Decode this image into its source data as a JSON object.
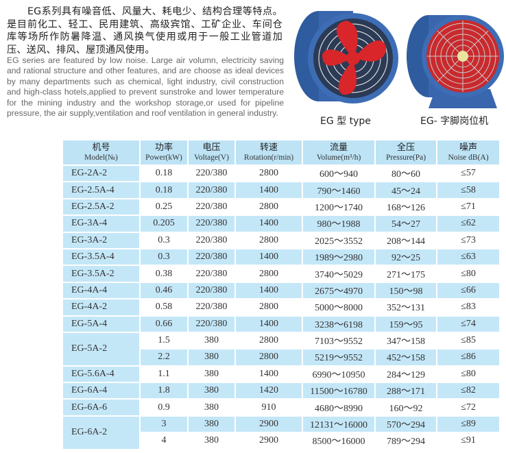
{
  "intro": {
    "cn": "EG系列具有噪音低、风量大、耗电少、结构合理等特点。是目前化工、轻工、民用建筑、高级宾馆、工矿企业、车间仓库等场所作防暑降温、通风换气使用或用于一般工业管道加压、送风、排风、屋顶通风使用。",
    "en": "EG series are featured by low noise. Large air volumn, electricity saving and rational structure and other features, and are choose as ideal devices by many departments such as chemical, light industry, civil construction and high-class hotels,applied to prevent sunstroke and lower temperature for the mining industry and the workshop storage,or used for pipeline pressure, the air supply,ventilation and roof ventilation in general industry."
  },
  "products": [
    {
      "caption": "EG 型 type"
    },
    {
      "caption": "EG- 字脚岗位机"
    }
  ],
  "colors": {
    "header_bg": "#bde3f5",
    "alt_row_bg": "#c4e7f8",
    "fan_blade": "#d8262a",
    "fan_body": "#3d6db5"
  },
  "table": {
    "headers": [
      {
        "cn": "机号",
        "en": "Model(№)"
      },
      {
        "cn": "功率",
        "en": "Power(kW)"
      },
      {
        "cn": "电压",
        "en": "Voltage(V)"
      },
      {
        "cn": "转速",
        "en": "Rotation(r/min)"
      },
      {
        "cn": "流量",
        "en": "Volume(m³/h)"
      },
      {
        "cn": "全压",
        "en": "Pressure(Pa)"
      },
      {
        "cn": "噪声",
        "en": "Noise dB(A)"
      }
    ],
    "rows": [
      {
        "model": "EG-2A-2",
        "power": "0.18",
        "voltage": "220/380",
        "rotation": "2800",
        "volume": "600～940",
        "pressure": "80～60",
        "noise": "≤57"
      },
      {
        "model": "EG-2.5A-4",
        "power": "0.18",
        "voltage": "220/380",
        "rotation": "1400",
        "volume": "790～1460",
        "pressure": "45～24",
        "noise": "≤58"
      },
      {
        "model": "EG-2.5A-2",
        "power": "0.25",
        "voltage": "220/380",
        "rotation": "2800",
        "volume": "1200～1740",
        "pressure": "168～126",
        "noise": "≤71"
      },
      {
        "model": "EG-3A-4",
        "power": "0.205",
        "voltage": "220/380",
        "rotation": "1400",
        "volume": "980～1988",
        "pressure": "54～27",
        "noise": "≤62"
      },
      {
        "model": "EG-3A-2",
        "power": "0.3",
        "voltage": "220/380",
        "rotation": "2800",
        "volume": "2025～3552",
        "pressure": "208～144",
        "noise": "≤73"
      },
      {
        "model": "EG-3.5A-4",
        "power": "0.3",
        "voltage": "220/380",
        "rotation": "1400",
        "volume": "1989～2980",
        "pressure": "92～25",
        "noise": "≤63"
      },
      {
        "model": "EG-3.5A-2",
        "power": "0.38",
        "voltage": "220/380",
        "rotation": "2800",
        "volume": "3740～5029",
        "pressure": "271～175",
        "noise": "≤80"
      },
      {
        "model": "EG-4A-4",
        "power": "0.46",
        "voltage": "220/380",
        "rotation": "1400",
        "volume": "2675～4970",
        "pressure": "150～98",
        "noise": "≤66"
      },
      {
        "model": "EG-4A-2",
        "power": "0.58",
        "voltage": "220/380",
        "rotation": "2800",
        "volume": "5000～8000",
        "pressure": "352～131",
        "noise": "≤83"
      },
      {
        "model": "EG-5A-4",
        "power": "0.66",
        "voltage": "220/380",
        "rotation": "1400",
        "volume": "3238～6198",
        "pressure": "159～95",
        "noise": "≤74"
      },
      {
        "model": "EG-5A-2",
        "span": 2,
        "power": "1.5",
        "voltage": "380",
        "rotation": "2800",
        "volume": "7103～9552",
        "pressure": "347～158",
        "noise": "≤85"
      },
      {
        "model": null,
        "power": "2.2",
        "voltage": "380",
        "rotation": "2800",
        "volume": "5219～9552",
        "pressure": "452～158",
        "noise": "≤86"
      },
      {
        "model": "EG-5.6A-4",
        "power": "1.1",
        "voltage": "380",
        "rotation": "1400",
        "volume": "6990～10950",
        "pressure": "284～129",
        "noise": "≤80"
      },
      {
        "model": "EG-6A-4",
        "power": "1.8",
        "voltage": "380",
        "rotation": "1420",
        "volume": "11500～16780",
        "pressure": "288～171",
        "noise": "≤82"
      },
      {
        "model": "EG-6A-6",
        "power": "0.9",
        "voltage": "380",
        "rotation": "910",
        "volume": "4680～8990",
        "pressure": "160～92",
        "noise": "≤72"
      },
      {
        "model": "EG-6A-2",
        "span": 2,
        "power": "3",
        "voltage": "380",
        "rotation": "2900",
        "volume": "12131～16000",
        "pressure": "570～294",
        "noise": "≤89"
      },
      {
        "model": null,
        "power": "4",
        "voltage": "380",
        "rotation": "2900",
        "volume": "8500～16000",
        "pressure": "789～294",
        "noise": "≤91"
      }
    ]
  }
}
